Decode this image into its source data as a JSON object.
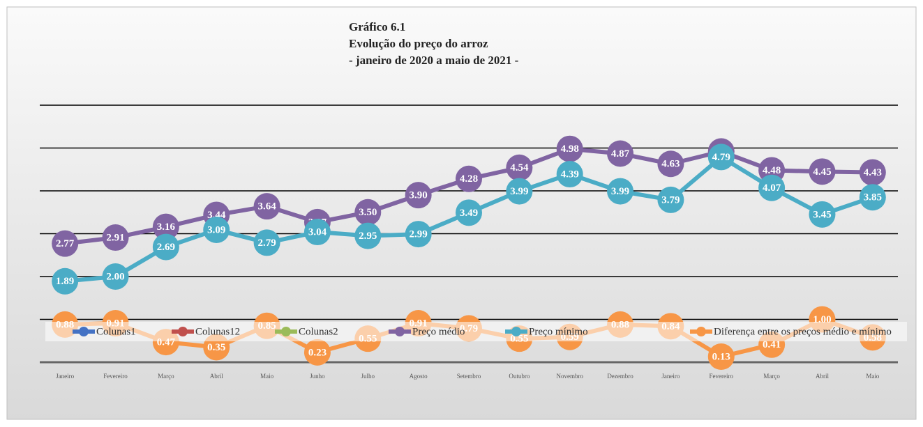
{
  "chart_data": {
    "type": "line",
    "title": [
      "Gráfico 6.1",
      "Evolução do preço do arroz",
      "- janeiro de 2020 a maio de 2021 -"
    ],
    "categories": [
      "Janeiro",
      "Fevereiro",
      "Março",
      "Abril",
      "Maio",
      "Junho",
      "Julho",
      "Agosto",
      "Setembro",
      "Outubro",
      "Novembro",
      "Dezembro",
      "Janeiro",
      "Fevereiro",
      "Março",
      "Abril",
      "Maio"
    ],
    "ylim": [
      0,
      6
    ],
    "yticks": [
      0,
      1,
      2,
      3,
      4,
      5,
      6
    ],
    "grid": true,
    "legend": "bottom",
    "series": [
      {
        "name": "Colunas1",
        "color": "#4472c4",
        "values": [
          null,
          null,
          null,
          null,
          null,
          null,
          null,
          null,
          null,
          null,
          null,
          null,
          null,
          null,
          null,
          null,
          null
        ]
      },
      {
        "name": "Colunas12",
        "color": "#c0504d",
        "values": [
          null,
          null,
          null,
          null,
          null,
          null,
          null,
          null,
          null,
          null,
          null,
          null,
          null,
          null,
          null,
          null,
          null
        ]
      },
      {
        "name": "Colunas2",
        "color": "#9bbb59",
        "values": [
          null,
          null,
          null,
          null,
          null,
          null,
          null,
          null,
          null,
          null,
          null,
          null,
          null,
          null,
          null,
          null,
          null
        ]
      },
      {
        "name": "Preço médio",
        "color": "#8064a2",
        "values": [
          2.77,
          2.91,
          3.16,
          3.44,
          3.64,
          3.27,
          3.5,
          3.9,
          4.28,
          4.54,
          4.98,
          4.87,
          4.63,
          4.92,
          4.48,
          4.45,
          4.43
        ],
        "value_labels": [
          "2.77",
          "2.91",
          "3.16",
          "3.44",
          "3.64",
          "3.27",
          "3.50",
          "3.90",
          "4.28",
          "4.54",
          "4.98",
          "4.87",
          "4.63",
          "4.92",
          "4.48",
          "4.45",
          "4.43"
        ]
      },
      {
        "name": "Preço  mínimo",
        "color": "#4bacc6",
        "values": [
          1.89,
          2,
          2.69,
          3.09,
          2.79,
          3.04,
          2.95,
          2.99,
          3.49,
          3.99,
          4.39,
          3.99,
          3.79,
          4.79,
          4.07,
          3.45,
          3.85
        ],
        "value_labels": [
          "1.89",
          "2.00",
          "2.69",
          "3.09",
          "2.79",
          "3.04",
          "2.95",
          "2.99",
          "3.49",
          "3.99",
          "4.39",
          "3.99",
          "3.79",
          "4.79",
          "4.07",
          "3.45",
          "3.85"
        ]
      },
      {
        "name": "Diferença entre os preços médio e mínimo",
        "color": "#f79646",
        "values": [
          0.88,
          0.91,
          0.47,
          0.35,
          0.85,
          0.23,
          0.55,
          0.91,
          0.79,
          0.55,
          0.59,
          0.88,
          0.84,
          0.13,
          0.41,
          1,
          0.58
        ],
        "value_labels": [
          "0.88",
          "0.91",
          "0.47",
          "0.35",
          "0.85",
          "0.23",
          "0.55",
          "0.91",
          "0.79",
          "0.55",
          "0.59",
          "0.88",
          "0.84",
          "0.13",
          "0.41",
          "1.00",
          "0.58"
        ]
      }
    ]
  }
}
